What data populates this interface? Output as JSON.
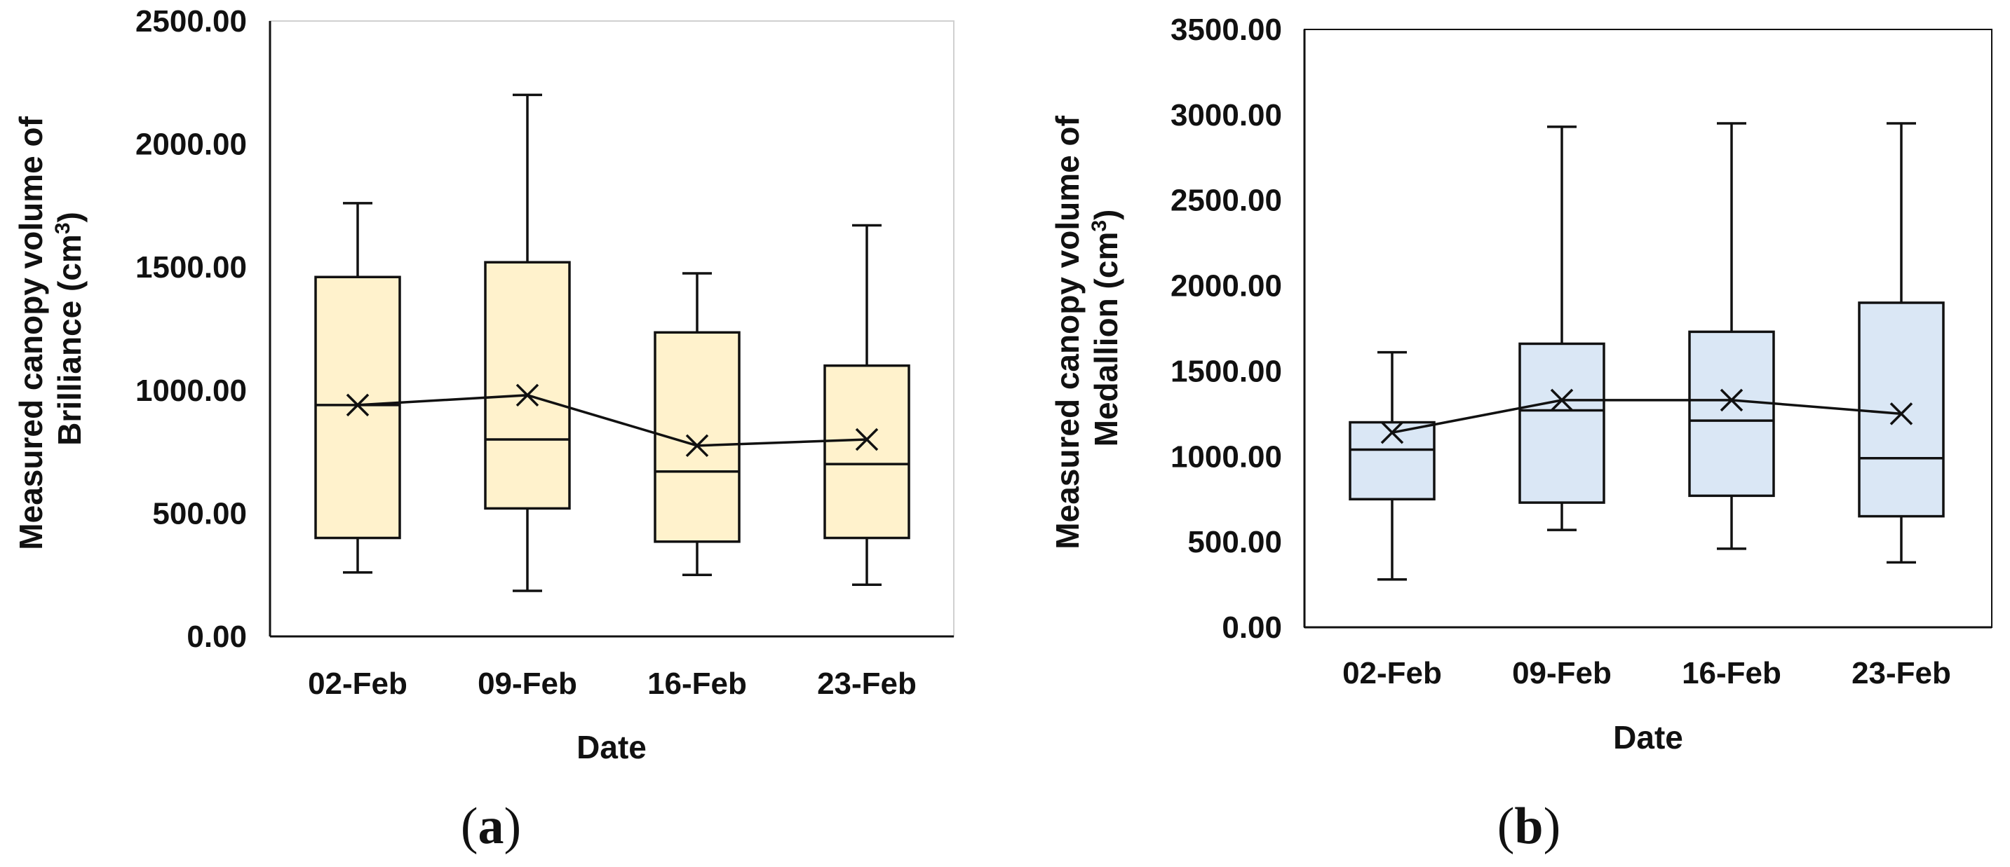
{
  "chart_data": [
    {
      "type": "box",
      "panel_label": "a",
      "ylabel_line1": "Measured canopy volume of",
      "ylabel_line2_text": "Brilliance (cm",
      "ylabel_line2_sup": "3",
      "ylabel_line2_close": ")",
      "xlabel": "Date",
      "ylim": [
        0,
        2500
      ],
      "yticks": [
        "0.00",
        "500.00",
        "1000.00",
        "1500.00",
        "2000.00",
        "2500.00"
      ],
      "ytick_values": [
        0,
        500,
        1000,
        1500,
        2000,
        2500
      ],
      "categories": [
        "02-Feb",
        "09-Feb",
        "16-Feb",
        "23-Feb"
      ],
      "box_fill": "#fff2cc",
      "boxes": [
        {
          "min": 260,
          "q1": 400,
          "median": 940,
          "q3": 1460,
          "max": 1760,
          "mean": 940
        },
        {
          "min": 185,
          "q1": 520,
          "median": 800,
          "q3": 1520,
          "max": 2200,
          "mean": 980
        },
        {
          "min": 250,
          "q1": 385,
          "median": 670,
          "q3": 1235,
          "max": 1475,
          "mean": 775
        },
        {
          "min": 210,
          "q1": 400,
          "median": 700,
          "q3": 1100,
          "max": 1670,
          "mean": 800
        }
      ],
      "grid": false,
      "legend": "none"
    },
    {
      "type": "box",
      "panel_label": "b",
      "ylabel_line1": "Measured canopy volume of",
      "ylabel_line2_text": "Medallion (cm",
      "ylabel_line2_sup": "3",
      "ylabel_line2_close": ")",
      "xlabel": "Date",
      "ylim": [
        0,
        3500
      ],
      "yticks": [
        "0.00",
        "500.00",
        "1000.00",
        "1500.00",
        "2000.00",
        "2500.00",
        "3000.00",
        "3500.00"
      ],
      "ytick_values": [
        0,
        500,
        1000,
        1500,
        2000,
        2500,
        3000,
        3500
      ],
      "categories": [
        "02-Feb",
        "09-Feb",
        "16-Feb",
        "23-Feb"
      ],
      "box_fill": "#dae7f5",
      "boxes": [
        {
          "min": 280,
          "q1": 750,
          "median": 1040,
          "q3": 1200,
          "max": 1610,
          "mean": 1140
        },
        {
          "min": 570,
          "q1": 730,
          "median": 1270,
          "q3": 1660,
          "max": 2930,
          "mean": 1330
        },
        {
          "min": 460,
          "q1": 770,
          "median": 1210,
          "q3": 1730,
          "max": 2950,
          "mean": 1330
        },
        {
          "min": 380,
          "q1": 650,
          "median": 990,
          "q3": 1900,
          "max": 2950,
          "mean": 1250
        }
      ],
      "grid": false,
      "legend": "none"
    }
  ]
}
